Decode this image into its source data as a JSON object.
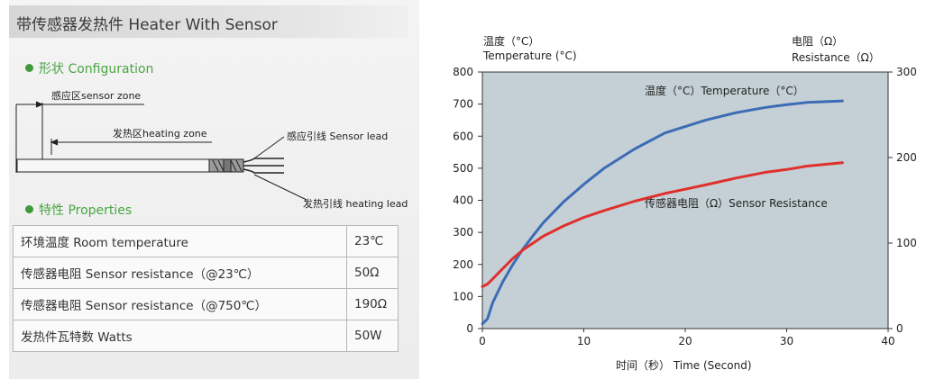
{
  "header": {
    "title": "带传感器发热件 Heater With Sensor"
  },
  "configuration": {
    "heading": "形状 Configuration",
    "labels": {
      "sensor_zone": "感应区sensor zone",
      "heating_zone": "发热区heating zone",
      "sensor_lead": "感应引线 Sensor lead",
      "heating_lead": "发热引线  heating lead"
    }
  },
  "properties": {
    "heading": "特性 Properties",
    "rows": [
      {
        "label": "环境温度 Room temperature",
        "value": "23℃"
      },
      {
        "label": "传感器电阻 Sensor resistance（@23℃）",
        "value": "50Ω"
      },
      {
        "label": "传感器电阻 Sensor resistance（@750℃）",
        "value": "190Ω"
      },
      {
        "label": "发热件瓦特数 Watts",
        "value": "50W"
      }
    ]
  },
  "chart_data": {
    "type": "line",
    "xlabel": "时间（秒） Time (Second)",
    "ylabel_left_cn": "温度（°C）",
    "ylabel_left_en": "Temperature (°C)",
    "ylabel_right_cn": "电阻（Ω）",
    "ylabel_right_en": "Resistance（Ω）",
    "xlim": [
      0,
      40
    ],
    "ylim_left": [
      0,
      800
    ],
    "ylim_right": [
      0,
      300
    ],
    "x_ticks": [
      0,
      10,
      20,
      30,
      40
    ],
    "y_left_ticks": [
      0,
      100,
      200,
      300,
      400,
      500,
      600,
      700,
      800
    ],
    "y_right_ticks": [
      0,
      100,
      200,
      300
    ],
    "background_color": "#c4d0d6",
    "series": [
      {
        "name": "温度（°C）Temperature（°C）",
        "axis": "left",
        "color": "#3d6cb5",
        "x": [
          0,
          0.5,
          1,
          2,
          3,
          4,
          5,
          6,
          8,
          10,
          12,
          15,
          18,
          20,
          22,
          25,
          28,
          30,
          32,
          35.5
        ],
        "y": [
          15,
          30,
          80,
          145,
          200,
          248,
          290,
          330,
          395,
          450,
          500,
          560,
          610,
          630,
          650,
          673,
          690,
          698,
          705,
          710
        ]
      },
      {
        "name": "传感器电阻（Ω）Sensor Resistance",
        "axis": "right",
        "color": "#e0302c",
        "x": [
          0,
          0.5,
          1,
          2,
          3,
          4,
          5,
          6,
          8,
          10,
          12,
          15,
          18,
          20,
          22,
          25,
          28,
          30,
          32,
          35.5
        ],
        "y": [
          49,
          52,
          58,
          70,
          82,
          92,
          100,
          108,
          120,
          130,
          138,
          149,
          158,
          163,
          168,
          176,
          183,
          186,
          190,
          194
        ]
      }
    ]
  }
}
